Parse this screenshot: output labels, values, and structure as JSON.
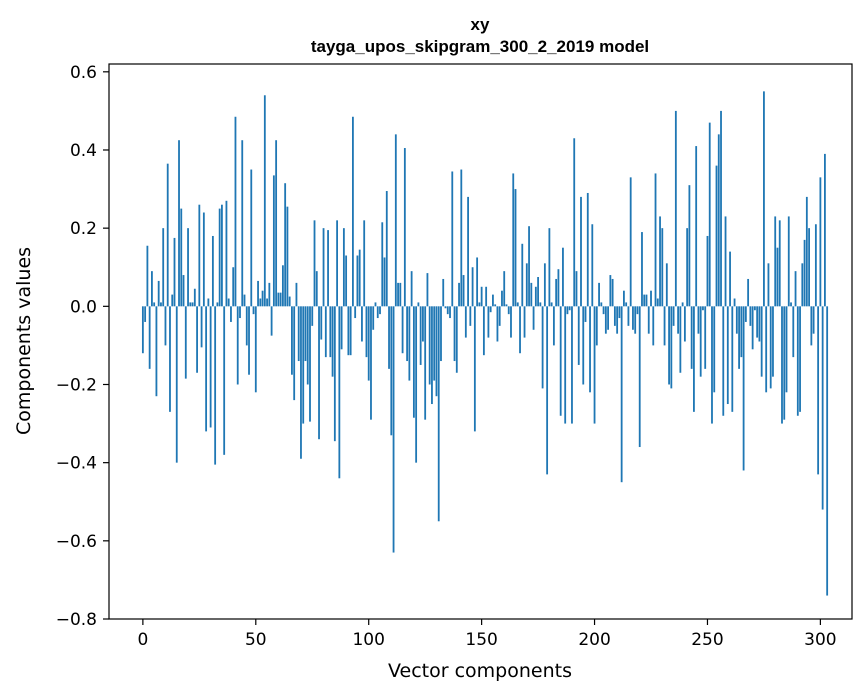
{
  "chart_data": {
    "type": "bar",
    "title": "xy",
    "subtitle": "tayga_upos_skipgram_300_2_2019 model",
    "xlabel": "Vector components",
    "ylabel": "Components values",
    "xlim": [
      -15,
      314
    ],
    "ylim": [
      -0.8,
      0.62
    ],
    "grid": false,
    "bar_color": "#1f77b4",
    "x_ticks": [
      0,
      50,
      100,
      150,
      200,
      250,
      300
    ],
    "x_tick_labels": [
      "0",
      "50",
      "100",
      "150",
      "200",
      "250",
      "300"
    ],
    "y_ticks": [
      -0.8,
      -0.6,
      -0.4,
      -0.2,
      0.0,
      0.2,
      0.4,
      0.6
    ],
    "y_tick_labels": [
      "−0.8",
      "−0.6",
      "−0.4",
      "−0.2",
      "0.0",
      "0.2",
      "0.4",
      "0.6"
    ],
    "values": [
      -0.12,
      -0.04,
      0.155,
      -0.16,
      0.09,
      0.01,
      -0.23,
      0.065,
      0.01,
      0.2,
      -0.1,
      0.365,
      -0.27,
      0.03,
      0.175,
      -0.4,
      0.425,
      0.25,
      0.08,
      -0.185,
      0.2,
      0.01,
      0.01,
      0.045,
      -0.17,
      0.26,
      -0.105,
      0.24,
      -0.32,
      0.02,
      -0.31,
      0.18,
      -0.405,
      0.01,
      0.25,
      0.26,
      -0.38,
      0.27,
      0.02,
      -0.04,
      0.1,
      0.485,
      -0.2,
      -0.03,
      0.425,
      0.03,
      -0.1,
      -0.175,
      0.35,
      -0.02,
      -0.22,
      0.065,
      0.02,
      0.04,
      0.54,
      0.02,
      0.06,
      -0.075,
      0.335,
      0.425,
      0.035,
      0.035,
      0.105,
      0.315,
      0.255,
      0.025,
      -0.175,
      -0.24,
      0.06,
      -0.14,
      -0.39,
      -0.3,
      -0.14,
      -0.2,
      -0.295,
      -0.05,
      0.22,
      0.09,
      -0.34,
      -0.085,
      0.2,
      -0.13,
      0.195,
      -0.13,
      -0.18,
      -0.345,
      0.22,
      -0.44,
      -0.11,
      0.2,
      0.13,
      -0.125,
      -0.125,
      0.485,
      -0.03,
      0.13,
      0.145,
      -0.09,
      0.22,
      -0.13,
      -0.19,
      -0.29,
      -0.06,
      0.01,
      -0.03,
      -0.02,
      0.215,
      0.125,
      0.295,
      -0.16,
      -0.33,
      -0.63,
      0.44,
      0.06,
      0.06,
      -0.12,
      0.405,
      -0.14,
      -0.19,
      0.09,
      -0.285,
      -0.4,
      0.01,
      -0.15,
      -0.09,
      -0.29,
      0.085,
      -0.2,
      -0.25,
      -0.19,
      -0.23,
      -0.55,
      -0.14,
      0.07,
      -0.005,
      -0.02,
      -0.03,
      0.345,
      -0.14,
      -0.17,
      0.06,
      0.35,
      0.08,
      -0.08,
      0.28,
      -0.05,
      0.1,
      -0.32,
      0.125,
      0.01,
      0.05,
      -0.125,
      0.05,
      -0.08,
      -0.015,
      0.03,
      0.005,
      -0.09,
      -0.05,
      0.04,
      0.09,
      0.005,
      -0.02,
      -0.08,
      0.34,
      0.3,
      0.01,
      -0.12,
      0.16,
      -0.08,
      0.11,
      0.205,
      0.06,
      -0.06,
      0.05,
      0.075,
      0.01,
      -0.21,
      0.11,
      -0.43,
      0.2,
      0.01,
      -0.1,
      0.07,
      0.095,
      -0.28,
      0.15,
      -0.3,
      -0.02,
      -0.01,
      -0.3,
      0.43,
      0.09,
      -0.15,
      0.28,
      -0.2,
      -0.04,
      0.29,
      -0.22,
      0.21,
      -0.3,
      -0.1,
      0.06,
      0.01,
      -0.02,
      -0.07,
      -0.06,
      0.08,
      0.07,
      -0.05,
      -0.07,
      -0.03,
      -0.45,
      0.04,
      0.01,
      -0.05,
      0.33,
      -0.06,
      -0.07,
      -0.02,
      -0.36,
      0.19,
      0.03,
      0.03,
      -0.07,
      0.04,
      -0.1,
      0.34,
      0.02,
      0.23,
      0.2,
      -0.1,
      0.11,
      -0.2,
      -0.21,
      -0.05,
      0.5,
      -0.07,
      -0.17,
      0.01,
      -0.09,
      0.2,
      0.31,
      -0.16,
      -0.27,
      0.41,
      -0.07,
      -0.18,
      -0.01,
      -0.16,
      0.18,
      0.47,
      -0.3,
      -0.22,
      0.36,
      0.44,
      0.5,
      -0.28,
      0.23,
      -0.25,
      0.14,
      -0.27,
      0.02,
      -0.07,
      -0.16,
      -0.13,
      -0.42,
      -0.04,
      0.07,
      -0.05,
      -0.11,
      -0.01,
      -0.08,
      -0.09,
      -0.18,
      0.55,
      -0.22,
      0.11,
      -0.21,
      -0.18,
      0.23,
      0.15,
      0.22,
      -0.3,
      -0.29,
      -0.22,
      0.23,
      0.01,
      -0.13,
      0.09,
      -0.28,
      -0.27,
      0.11,
      0.17,
      0.28,
      0.2,
      -0.1,
      -0.07,
      0.21,
      -0.43,
      0.33,
      -0.52,
      0.39,
      -0.74
    ]
  }
}
